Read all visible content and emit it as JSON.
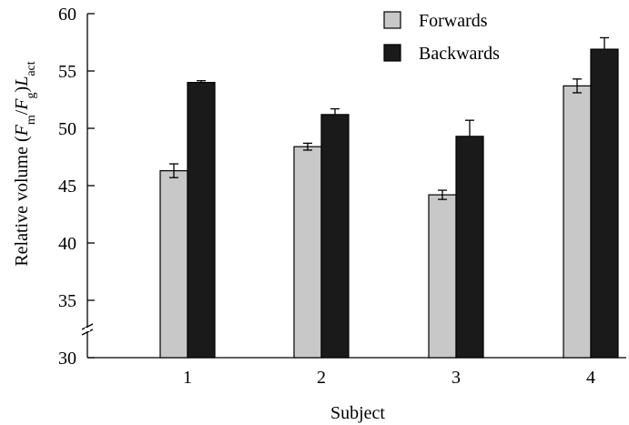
{
  "chart_data": {
    "type": "bar",
    "xlabel": "Subject",
    "ylabel_parts": [
      "Relative volume (",
      "F",
      "m",
      "/",
      "F",
      "g",
      ")",
      "L",
      "act"
    ],
    "categories": [
      "1",
      "2",
      "3",
      "4"
    ],
    "yticks": [
      30,
      35,
      40,
      45,
      50,
      55,
      60
    ],
    "ylim": [
      30,
      60
    ],
    "axis_break": true,
    "legend_position": "top-right",
    "series": [
      {
        "name": "Forwards",
        "color": "#c8c8c8",
        "values": [
          46.3,
          48.4,
          44.2,
          53.7
        ],
        "errors": [
          0.6,
          0.3,
          0.4,
          0.6
        ]
      },
      {
        "name": "Backwards",
        "color": "#1a1a1a",
        "values": [
          54.0,
          51.2,
          49.3,
          56.9
        ],
        "errors": [
          0.15,
          0.5,
          1.4,
          1.0
        ]
      }
    ]
  }
}
